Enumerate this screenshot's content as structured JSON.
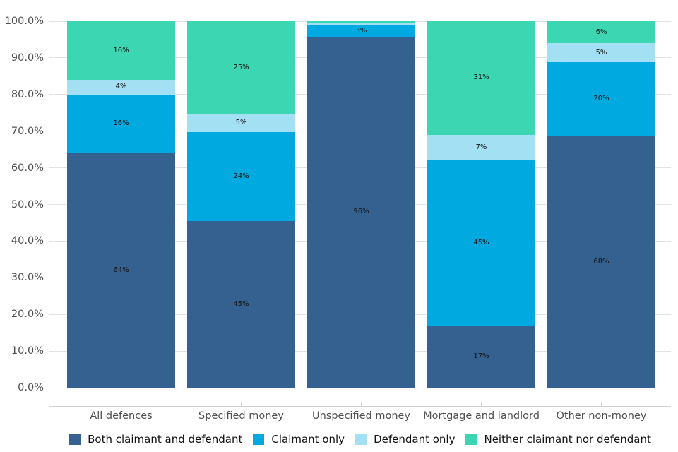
{
  "chart_data": {
    "type": "bar",
    "variant": "stacked-100-percent",
    "title": "",
    "xlabel": "",
    "ylabel": "",
    "grid": "horizontal",
    "legend_position": "bottom",
    "categories": [
      "All defences",
      "Specified money",
      "Unspecified money",
      "Mortgage and landlord",
      "Other non-money"
    ],
    "series": [
      {
        "name": "Both claimant and defendant",
        "color": "#34618f",
        "values": [
          64,
          45,
          96,
          17,
          68
        ],
        "labels": [
          "64%",
          "45%",
          "96%",
          "17%",
          "68%"
        ]
      },
      {
        "name": "Claimant only",
        "color": "#00a9e0",
        "values": [
          16,
          24,
          3,
          45,
          20
        ],
        "labels": [
          "16%",
          "24%",
          "3%",
          "45%",
          "20%"
        ]
      },
      {
        "name": "Defendant only",
        "color": "#a3e0f4",
        "values": [
          4,
          5,
          0.6,
          7,
          5
        ],
        "labels": [
          "4%",
          "5%",
          "",
          "7%",
          "5%"
        ]
      },
      {
        "name": "Neither claimant nor defendant",
        "color": "#3dd6b2",
        "values": [
          16,
          25,
          0.6,
          31,
          6
        ],
        "labels": [
          "16%",
          "25%",
          "",
          "31%",
          "6%"
        ]
      }
    ],
    "y_axis": {
      "min": 0,
      "max": 100,
      "step": 10,
      "tick_labels": [
        "0.0%",
        "10.0%",
        "20.0%",
        "30.0%",
        "40.0%",
        "50.0%",
        "60.0%",
        "70.0%",
        "80.0%",
        "90.0%",
        "100.0%"
      ]
    },
    "style": {
      "axis_text_color": "#4f4f4f",
      "bar_label_color": "#111111",
      "gridline_color": "#e3e3e3",
      "axis_line_color": "#cfcfcf",
      "background": "#ffffff"
    }
  }
}
